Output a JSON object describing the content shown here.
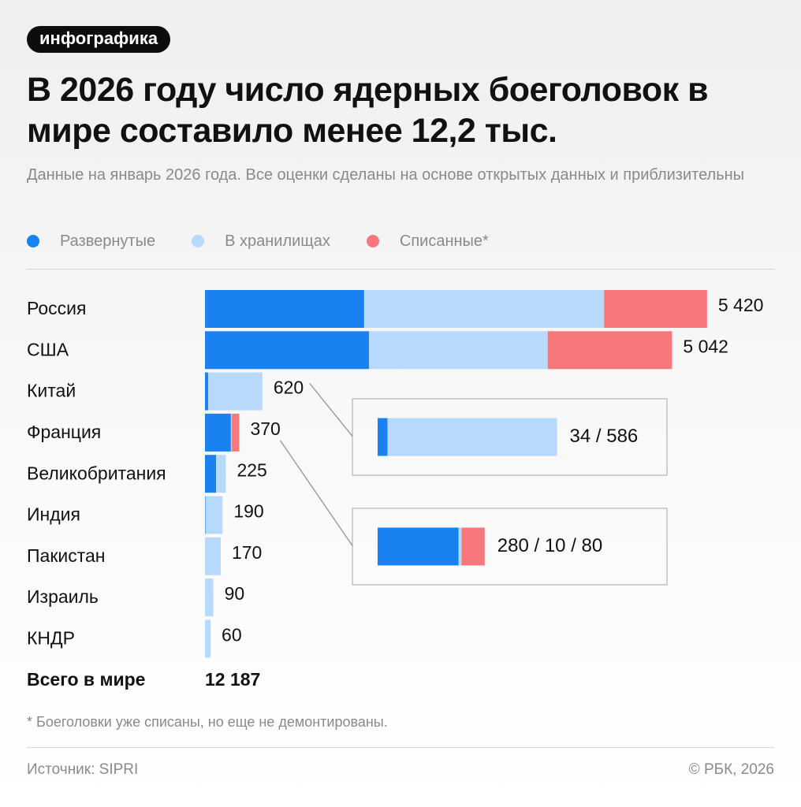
{
  "badge": "инфографика",
  "title": "В 2026 году число ядерных боеголовок в мире составило менее 12,2 тыс.",
  "subtitle": "Данные на январь 2026 года. Все оценки сделаны на основе открытых данных и приблизительны",
  "colors": {
    "deployed": "#1a82f0",
    "stored": "#b7d9fb",
    "retired": "#f7777a"
  },
  "legend": [
    {
      "label": "Развернутые",
      "color": "#1a82f0"
    },
    {
      "label": "В хранилищах",
      "color": "#b7d9fb"
    },
    {
      "label": "Списанные*",
      "color": "#f7777a"
    }
  ],
  "chart_data": {
    "type": "bar",
    "orientation": "horizontal",
    "stacked": true,
    "categories": [
      "Россия",
      "США",
      "Китай",
      "Франция",
      "Великобритания",
      "Индия",
      "Пакистан",
      "Израиль",
      "КНДР"
    ],
    "series": [
      {
        "name": "Развернутые",
        "values": [
          1718,
          1770,
          34,
          280,
          120,
          6,
          0,
          0,
          0
        ]
      },
      {
        "name": "В хранилищах",
        "values": [
          2591,
          1930,
          586,
          10,
          105,
          184,
          170,
          90,
          60
        ]
      },
      {
        "name": "Списанные*",
        "values": [
          1111,
          1342,
          0,
          80,
          0,
          0,
          0,
          0,
          0
        ]
      }
    ],
    "total_labels": [
      "5 420",
      "5 042",
      "620",
      "370",
      "225",
      "190",
      "170",
      "90",
      "60"
    ],
    "total_row": {
      "label": "Всего в мире",
      "value": "12 187"
    },
    "callouts": [
      {
        "country": "Китай",
        "values": [
          34,
          586,
          0
        ],
        "label": "34 / 586"
      },
      {
        "country": "Франция",
        "values": [
          280,
          10,
          80
        ],
        "label": "280 / 10 / 80"
      }
    ]
  },
  "footnote": "* Боеголовки уже списаны, но еще не демонтированы.",
  "source": "Источник: SIPRI",
  "copyright": "© РБК, 2026"
}
